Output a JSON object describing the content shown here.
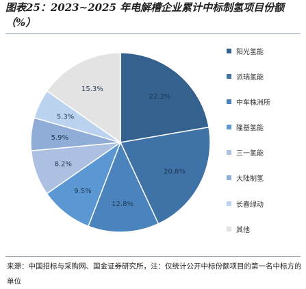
{
  "title": "图表25：2023~2025 年电解槽企业累计中标制氢项目份额（%）",
  "source": "来源：中国招标与采购网、国金证券研究所，注：仅统计公开中标份额项目的第一名中标方的单位",
  "chart_data": {
    "type": "pie",
    "title": "",
    "legend_position": "right",
    "categories": [
      "阳光氢能",
      "派瑞氢能",
      "中车株洲所",
      "隆基氢能",
      "三一氢能",
      "大陆制氢",
      "长春绿动",
      "其他"
    ],
    "values": [
      22.3,
      20.8,
      12.8,
      9.5,
      8.2,
      5.9,
      5.3,
      15.3
    ],
    "labels": [
      "22.3%",
      "20.8%",
      "12.8%",
      "9.5%",
      "8.2%",
      "5.9%",
      "5.3%",
      "15.3%"
    ],
    "colors": [
      "#35618f",
      "#3f72a6",
      "#4b84bd",
      "#5b97d3",
      "#acc0e2",
      "#8fadd6",
      "#bcd3ef",
      "#e3e3e3"
    ]
  }
}
